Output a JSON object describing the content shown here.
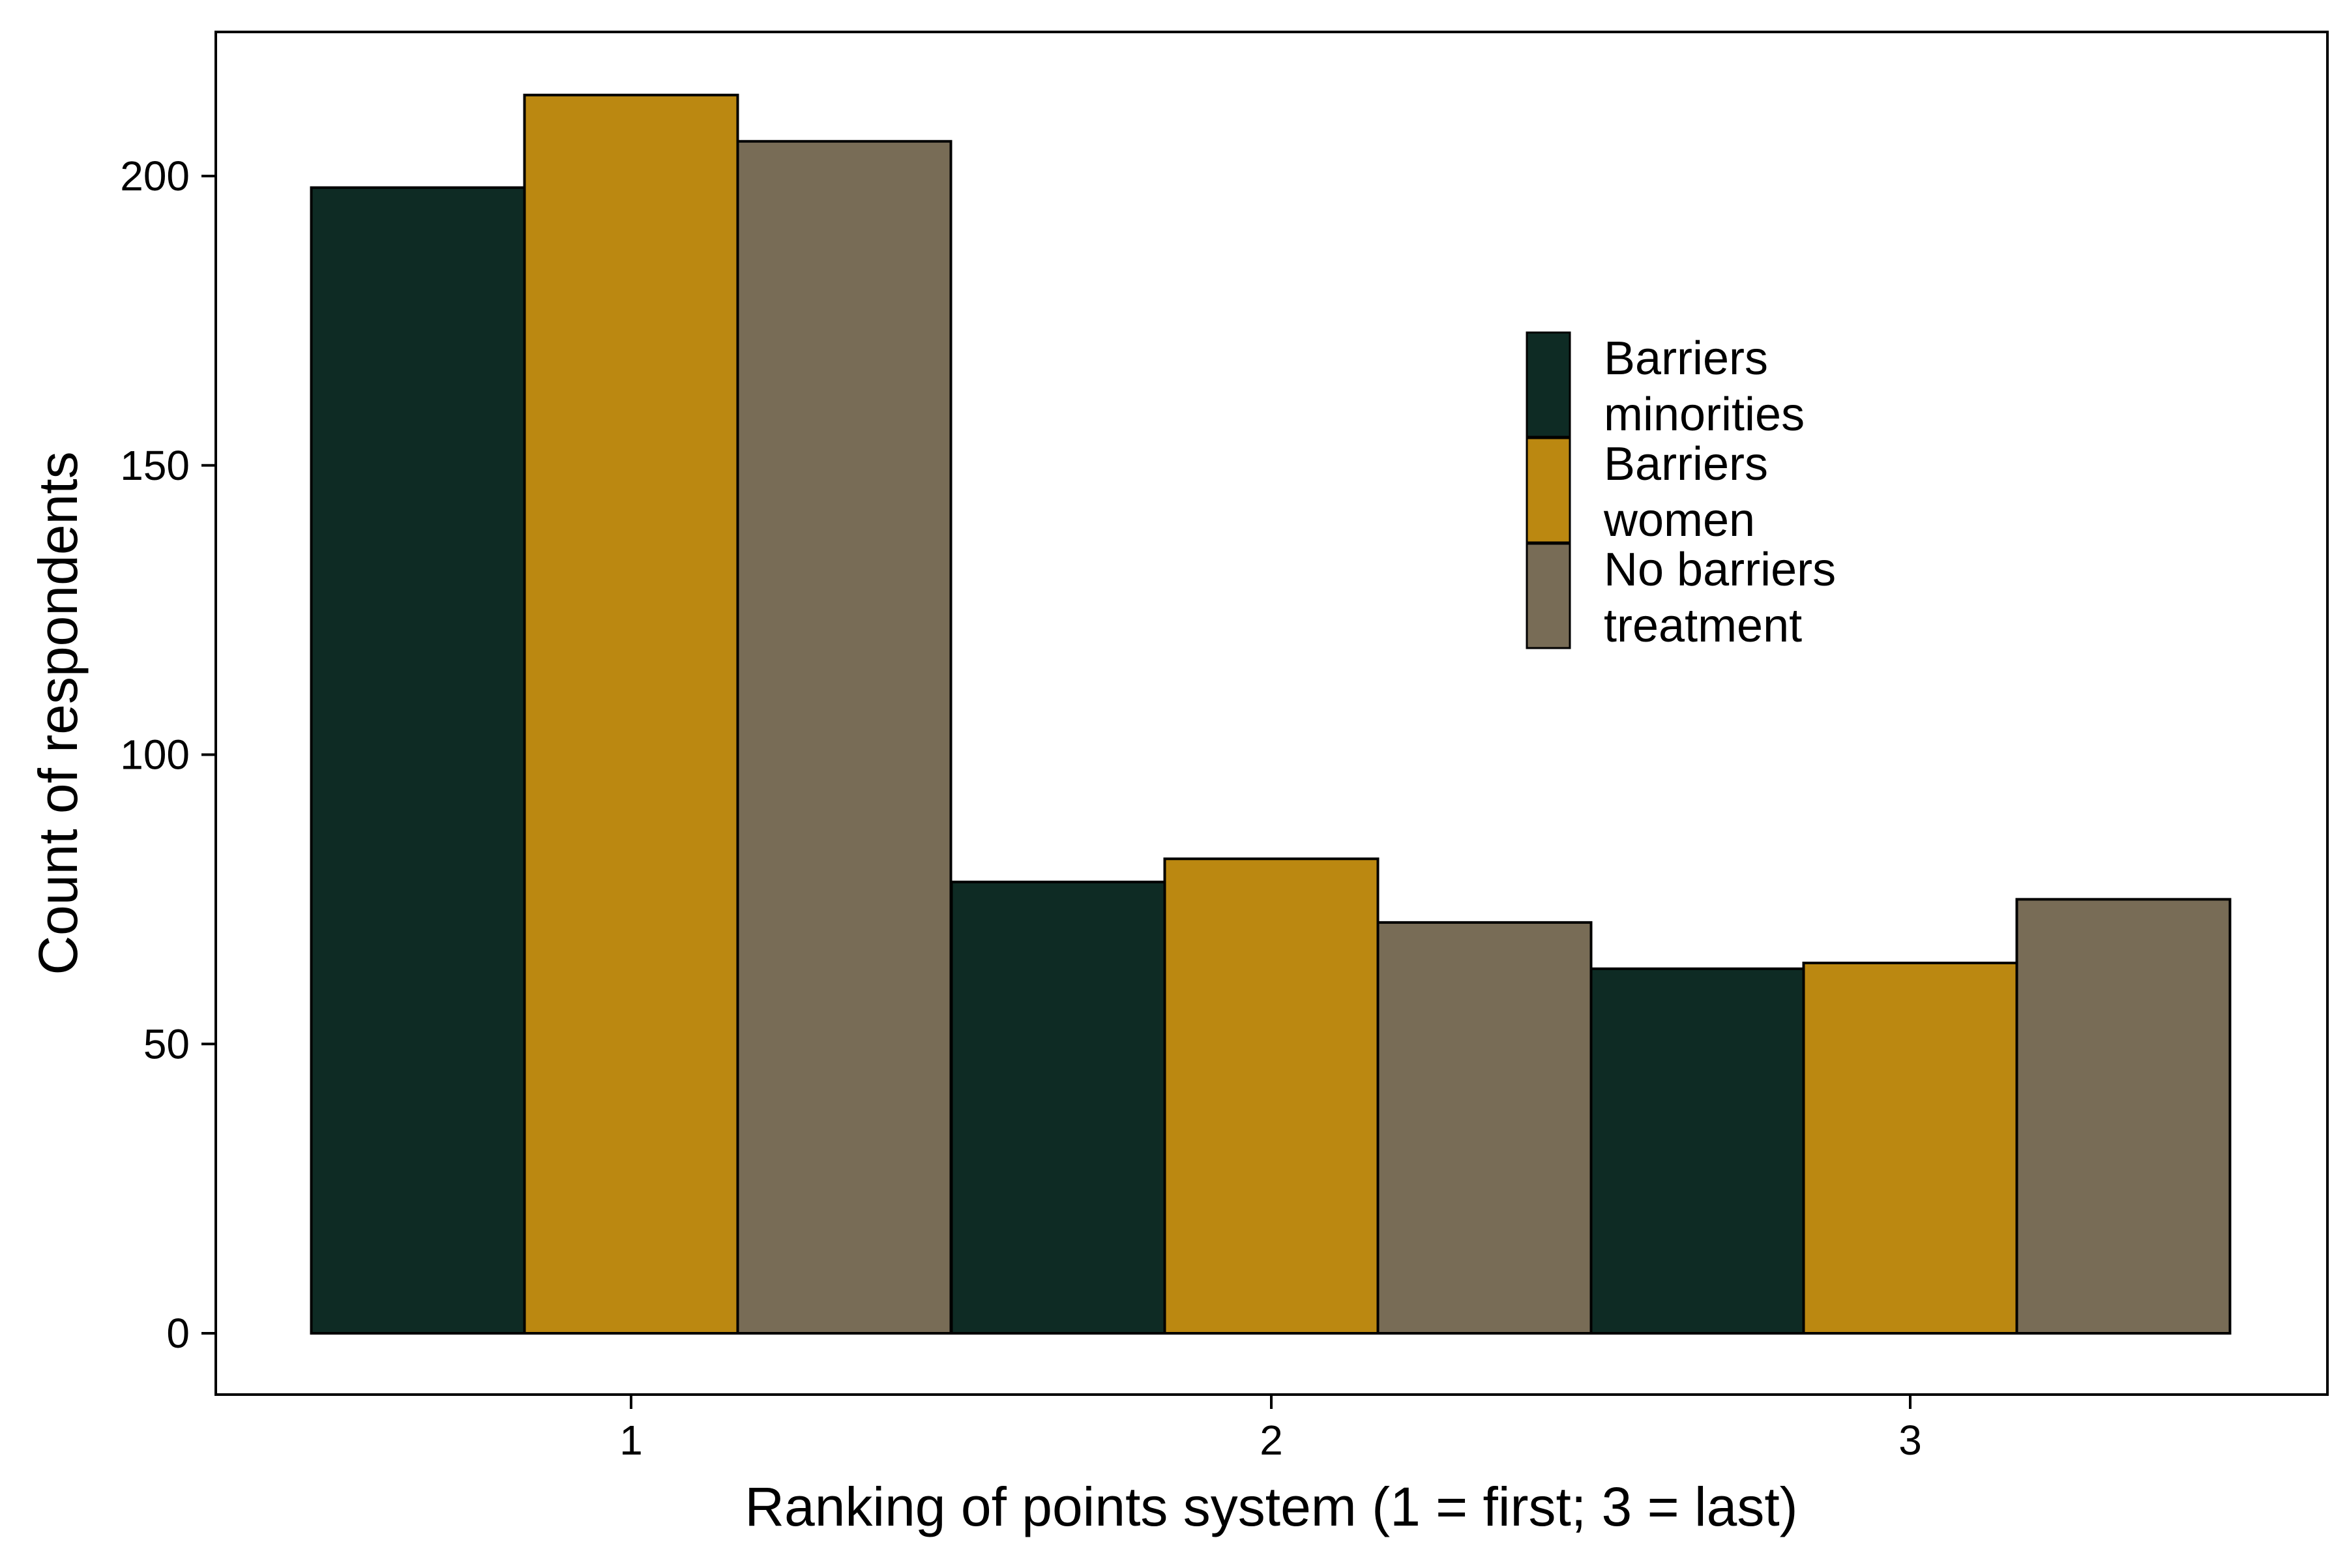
{
  "chart_data": {
    "type": "bar",
    "title": "",
    "xlabel": "Ranking of points system (1 = first; 3 = last)",
    "ylabel": "Count of respondents",
    "categories": [
      "1",
      "2",
      "3"
    ],
    "yticks": [
      0,
      50,
      100,
      150,
      200
    ],
    "ylim": [
      -10.5,
      224
    ],
    "grid": false,
    "legend_position": "top-right",
    "series": [
      {
        "name": "Barriers minorities",
        "label_lines": [
          "Barriers",
          "minorities"
        ],
        "color": "#0e2b24",
        "values": [
          198,
          78,
          63
        ]
      },
      {
        "name": "Barriers women",
        "label_lines": [
          "Barriers",
          "women"
        ],
        "color": "#bb8811",
        "values": [
          214,
          82,
          64
        ]
      },
      {
        "name": "No barriers treatment",
        "label_lines": [
          "No barriers",
          "treatment"
        ],
        "color": "#786c56",
        "values": [
          206,
          71,
          75
        ]
      }
    ]
  }
}
